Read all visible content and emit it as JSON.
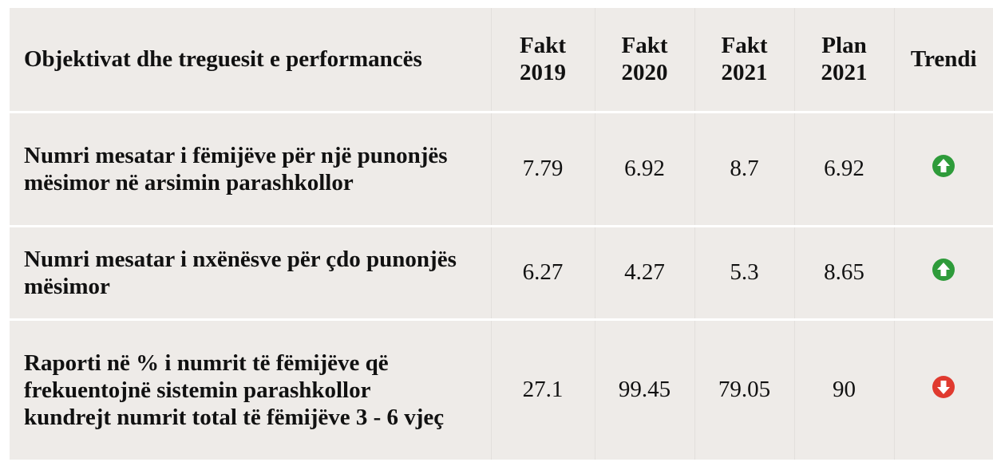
{
  "table": {
    "header": [
      "Objektivat dhe treguesit e performancës",
      "Fakt 2019",
      "Fakt 2020",
      "Fakt 2021",
      "Plan 2021",
      "Trendi"
    ],
    "rows": [
      {
        "label": "Numri mesatar i fëmijëve për një punonjës mësimor në arsimin parashkollor",
        "values": [
          7.79,
          6.92,
          8.7,
          6.92
        ],
        "trend": "up"
      },
      {
        "label": "Numri mesatar i nxënësve për çdo punonjës mësimor",
        "values": [
          6.27,
          4.27,
          5.3,
          8.65
        ],
        "trend": "up"
      },
      {
        "label": "Raporti në % i numrit të fëmijëve që frekuentojnë sistemin parashkollor kundrejt numrit total të fëmijëve 3 - 6 vjeç",
        "values": [
          27.1,
          99.45,
          79.05,
          90
        ],
        "trend": "down"
      }
    ]
  }
}
